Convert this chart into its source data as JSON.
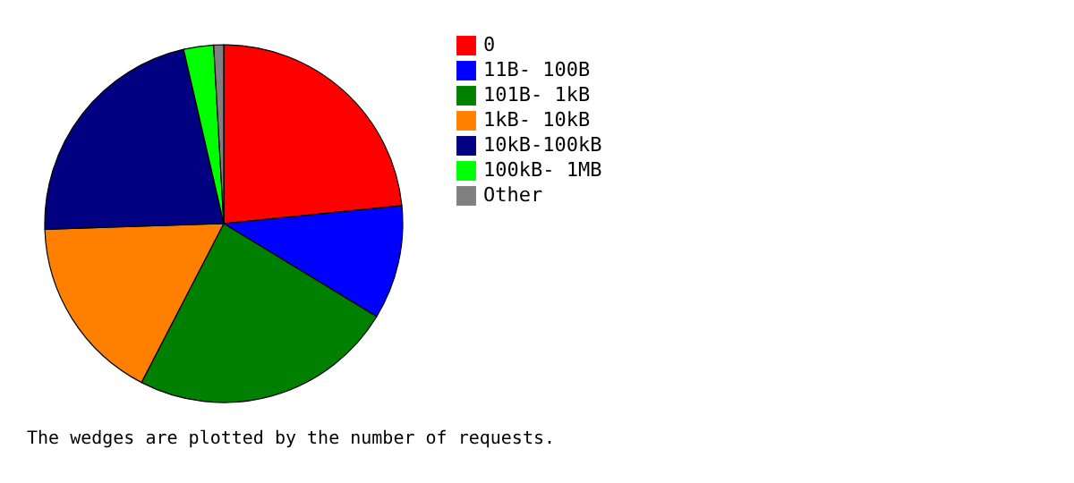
{
  "chart_data": {
    "type": "pie",
    "categories": [
      "0",
      "11B- 100B",
      "101B-  1kB",
      "1kB- 10kB",
      "10kB-100kB",
      "100kB-  1MB",
      "Other"
    ],
    "values": [
      23.4,
      10.3,
      23.9,
      16.9,
      21.9,
      2.7,
      0.9
    ],
    "colors": [
      "#ff0000",
      "#0000ff",
      "#008000",
      "#ff8000",
      "#000080",
      "#00ff00",
      "#808080"
    ],
    "legend": "right",
    "annotations": [
      "The wedges are plotted by the number of requests."
    ]
  }
}
